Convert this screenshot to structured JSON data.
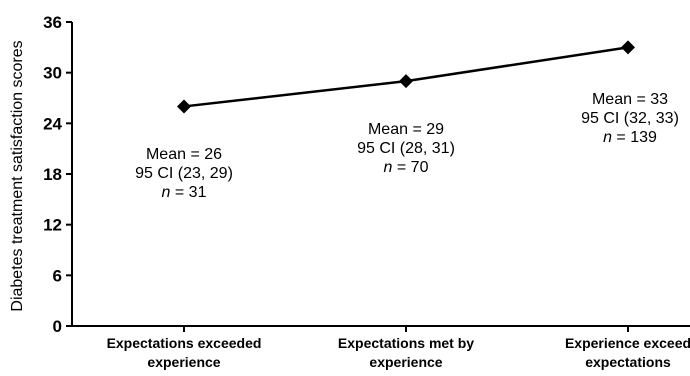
{
  "chart_data": {
    "type": "line",
    "title": "",
    "xlabel": "",
    "ylabel": "Diabetes treatment satisfaction scores",
    "ylim": [
      0,
      36
    ],
    "yticks": [
      "0",
      "6",
      "12",
      "18",
      "24",
      "30",
      "36"
    ],
    "grid": false,
    "legend": "none",
    "marker": "diamond",
    "line_color": "#000000",
    "categories": [
      [
        "Expectations exceeded",
        "experience"
      ],
      [
        "Expectations met by",
        "experience"
      ],
      [
        "Experience exceed",
        "expectations"
      ]
    ],
    "values": [
      26,
      29,
      33
    ],
    "annotations": [
      {
        "mean": "Mean = 26",
        "ci": "95 CI (23, 29)",
        "n_label": "n",
        "n_value": " = 31"
      },
      {
        "mean": "Mean = 29",
        "ci": "95 CI (28, 31)",
        "n_label": "n",
        "n_value": " = 70"
      },
      {
        "mean": "Mean = 33",
        "ci": "95 CI (32, 33)",
        "n_label": "n",
        "n_value": " = 139"
      }
    ]
  }
}
